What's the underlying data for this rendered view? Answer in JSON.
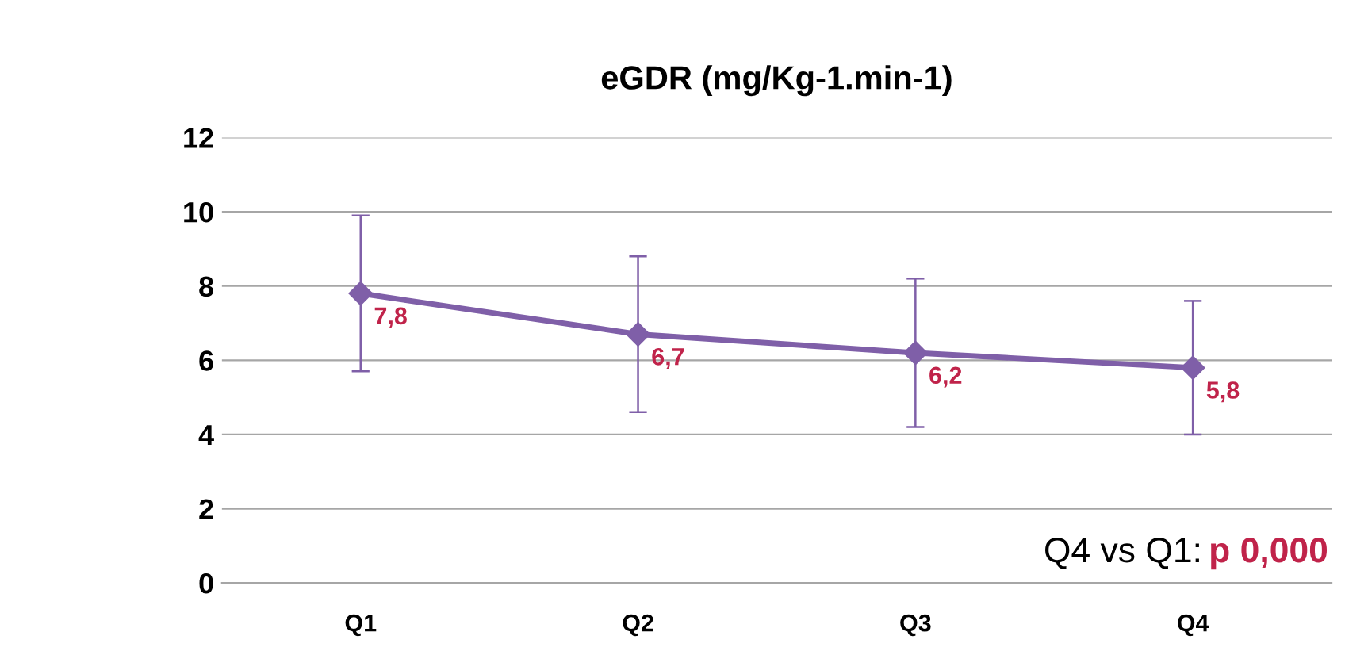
{
  "chart_data": {
    "type": "line",
    "title": "eGDR (mg/Kg-1.min-1)",
    "categories": [
      "Q1",
      "Q2",
      "Q3",
      "Q4"
    ],
    "series": [
      {
        "color": "#7f5fa8",
        "values": [
          7.8,
          6.7,
          6.2,
          5.8
        ],
        "errors": [
          2.1,
          2.1,
          2.0,
          1.8
        ],
        "value_labels": [
          "7,8",
          "6,7",
          "6,2",
          "5,8"
        ]
      }
    ],
    "ylim": [
      0,
      12
    ],
    "yticks": [
      0,
      2,
      4,
      6,
      8,
      10,
      12
    ],
    "grid": "y",
    "marker": "diamond",
    "line_style": "solid",
    "annotations": [
      "Q4 vs Q1:",
      "p 0,000"
    ]
  }
}
